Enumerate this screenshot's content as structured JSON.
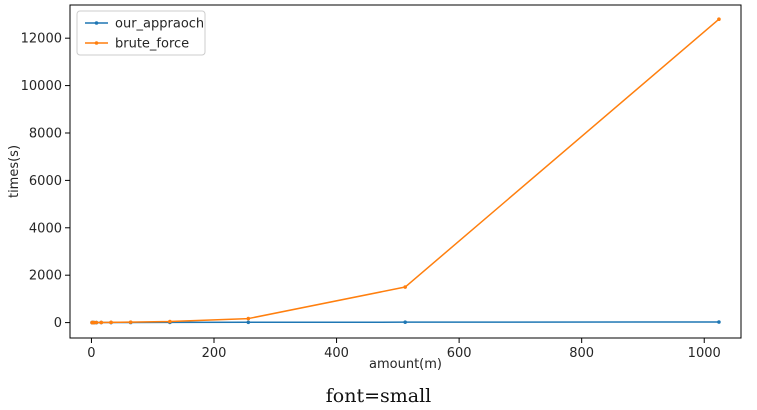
{
  "caption": "font=small",
  "chart_data": {
    "type": "line",
    "xlabel": "amount(m)",
    "ylabel": "times(s)",
    "xlim": [
      -35,
      1060
    ],
    "ylim": [
      -650,
      13400
    ],
    "xticks": [
      0,
      200,
      400,
      600,
      800,
      1000
    ],
    "yticks": [
      0,
      2000,
      4000,
      6000,
      8000,
      10000,
      12000
    ],
    "grid": false,
    "legend_position": "top-left",
    "series": [
      {
        "name": "our_appraoch",
        "color": "#1f77b4",
        "x": [
          1,
          2,
          4,
          8,
          16,
          32,
          64,
          128,
          256,
          512,
          1024
        ],
        "y": [
          0.1,
          0.2,
          0.4,
          0.8,
          1.5,
          3,
          5,
          8,
          12,
          18,
          25
        ]
      },
      {
        "name": "brute_force",
        "color": "#ff7f0e",
        "x": [
          1,
          2,
          4,
          8,
          16,
          32,
          64,
          128,
          256,
          512,
          1024
        ],
        "y": [
          0.1,
          0.3,
          0.8,
          2,
          5,
          10,
          20,
          45,
          170,
          1500,
          12800
        ]
      }
    ]
  }
}
